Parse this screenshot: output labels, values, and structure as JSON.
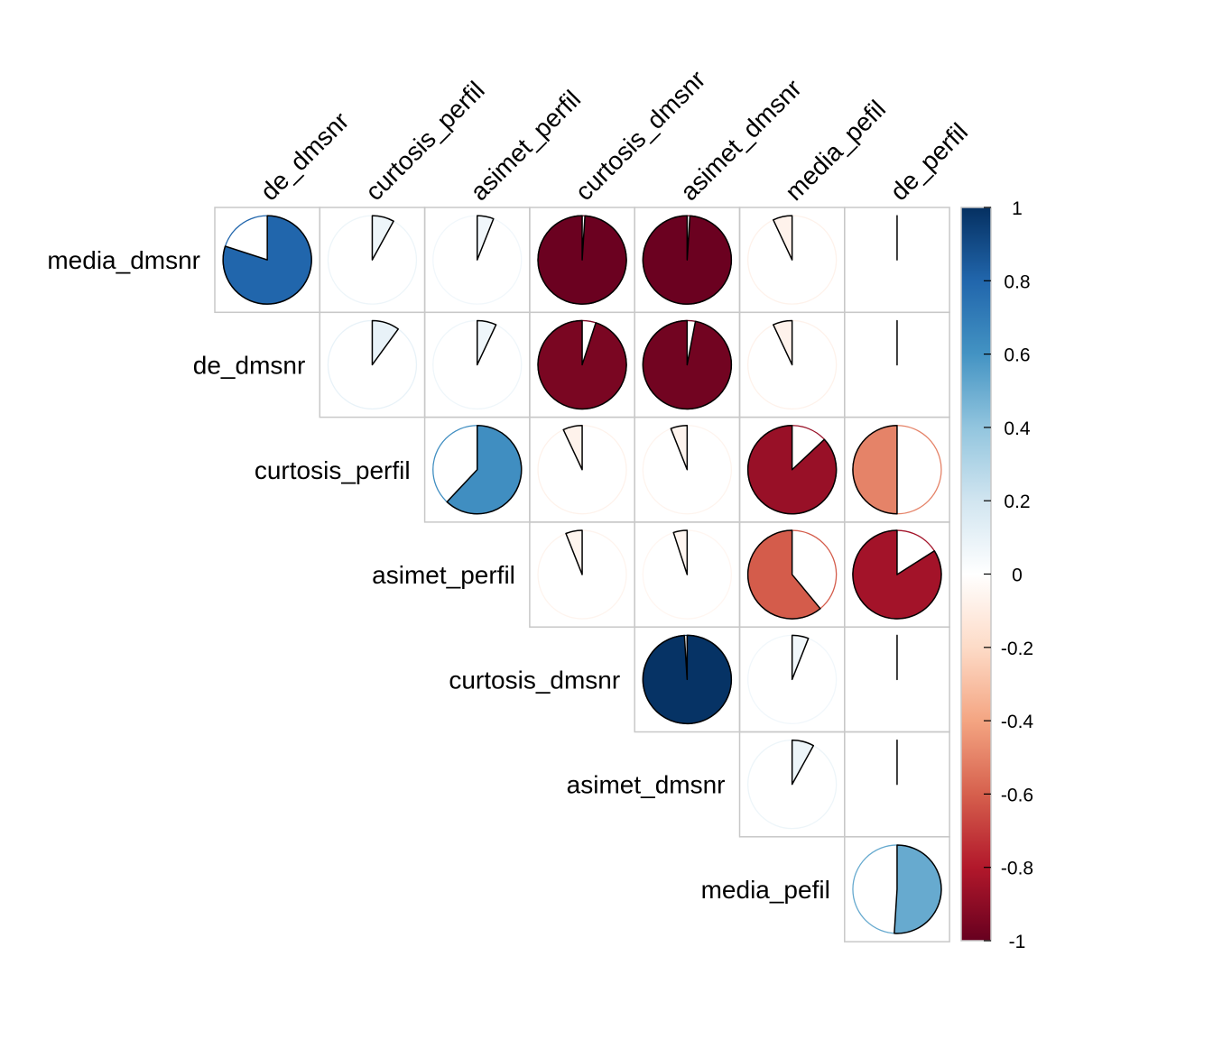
{
  "chart_data": {
    "type": "heatmap",
    "method": "pie",
    "layout": "upper-triangular",
    "row_labels": [
      "media_dmsnr",
      "de_dmsnr",
      "curtosis_perfil",
      "asimet_perfil",
      "curtosis_dmsnr",
      "asimet_dmsnr",
      "media_pefil"
    ],
    "col_labels": [
      "de_dmsnr",
      "curtosis_perfil",
      "asimet_perfil",
      "curtosis_dmsnr",
      "asimet_dmsnr",
      "media_pefil",
      "de_perfil"
    ],
    "values": [
      [
        0.8,
        0.08,
        0.06,
        -0.99,
        -0.99,
        -0.07,
        0.0
      ],
      [
        null,
        0.1,
        0.07,
        -0.95,
        -0.97,
        -0.07,
        0.0
      ],
      [
        null,
        null,
        0.62,
        -0.07,
        -0.06,
        -0.87,
        -0.5
      ],
      [
        null,
        null,
        null,
        -0.06,
        -0.05,
        -0.61,
        -0.84
      ],
      [
        null,
        null,
        null,
        null,
        0.99,
        0.06,
        0.0
      ],
      [
        null,
        null,
        null,
        null,
        null,
        0.08,
        0.0
      ],
      [
        null,
        null,
        null,
        null,
        null,
        null,
        0.51
      ]
    ],
    "colorbar": {
      "range": [
        -1,
        1
      ],
      "ticks": [
        "1",
        "0.8",
        "0.6",
        "0.4",
        "0.2",
        "0",
        "-0.2",
        "-0.4",
        "-0.6",
        "-0.8",
        "-1"
      ]
    },
    "colors": [
      "#67001F",
      "#B2182B",
      "#D6604D",
      "#F4A582",
      "#FDDBC7",
      "#FFFFFF",
      "#D1E5F0",
      "#92C5DE",
      "#4393C3",
      "#2166AC",
      "#053061"
    ],
    "grid": true,
    "legend_position": "right"
  }
}
